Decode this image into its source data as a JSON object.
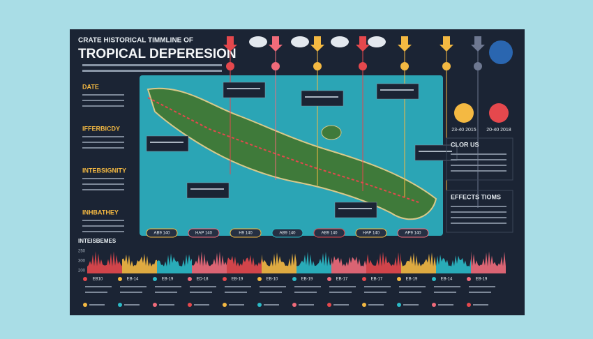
{
  "header": {
    "title_line1": "CRATE HISTORICAL TIMMLINE OF",
    "title_line2": "TROPICAL DEPERESION"
  },
  "left_sections": [
    "DATE",
    "IFFERBICDY",
    "INTEBSIGNITY",
    "INHBATHEY"
  ],
  "right_sections": [
    "CLOR US",
    "EFFECTS TIOMS"
  ],
  "right_dates": [
    "23-40 2015",
    "20-40 2018"
  ],
  "timeline_labels": [
    "AB9 140",
    "HAP 140",
    "H9 140",
    "AB9 140",
    "AB9 140",
    "HAP 140",
    "AP9 140"
  ],
  "bottom_section": "INTEISBEMES",
  "wave_labels": [
    "250",
    "300",
    "200"
  ],
  "bottom_dates": [
    "EB10",
    "EB-14",
    "EB-19",
    "ED-18",
    "EB-19",
    "EB-10",
    "EB-19",
    "EB-17",
    "EB-17",
    "EB-19",
    "EB-14",
    "EB-19"
  ]
}
